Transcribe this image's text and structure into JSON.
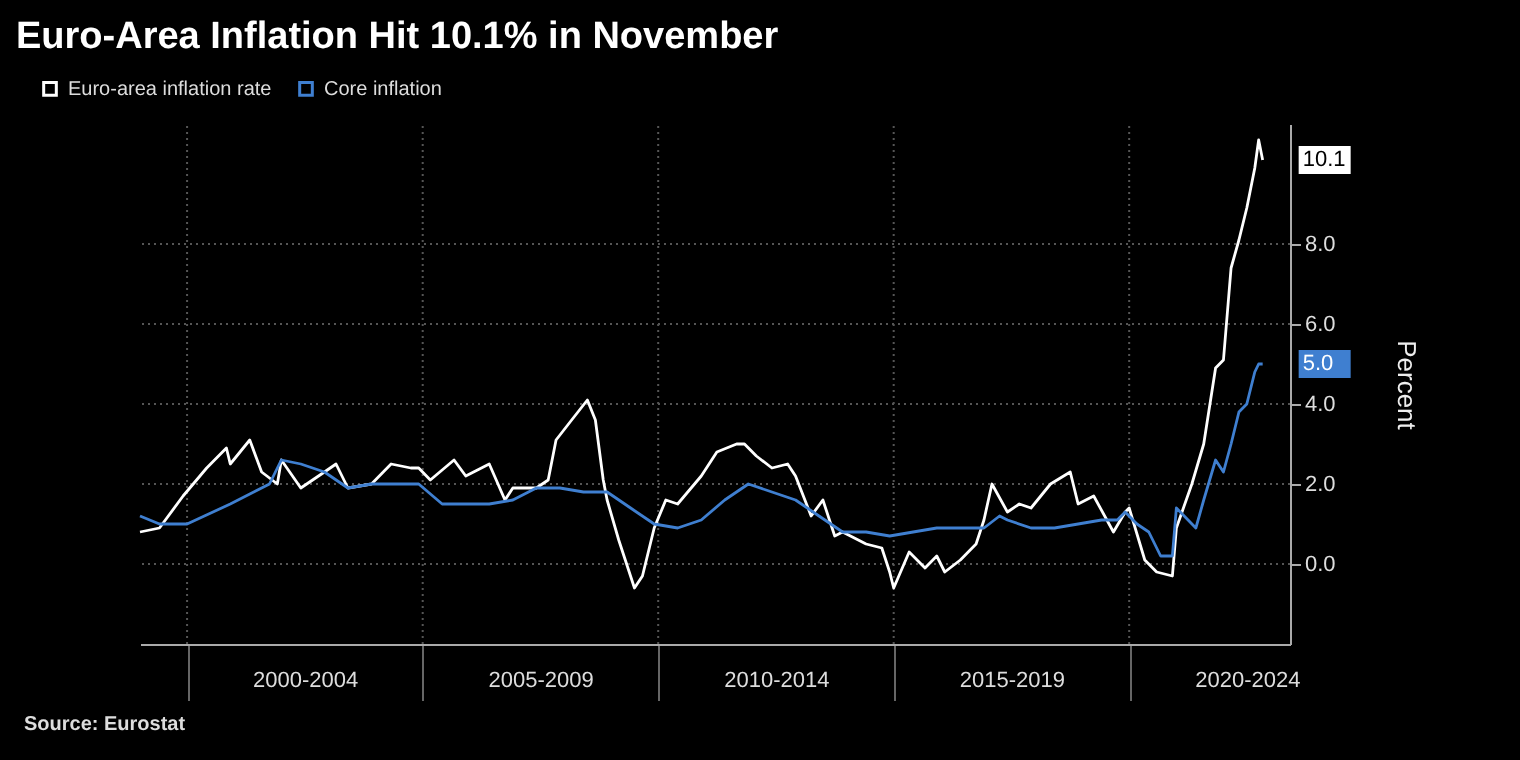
{
  "chart_data": {
    "type": "line",
    "title": "Euro-Area Inflation Hit 10.1% in November",
    "ylabel": "Percent",
    "xlim": [
      "1999-01",
      "2023-06"
    ],
    "xticks": [
      {
        "value": "2000-01",
        "label": null
      },
      {
        "value": "2002-07",
        "label": "2000-2004"
      },
      {
        "value": "2005-01",
        "label": null
      },
      {
        "value": "2007-07",
        "label": "2005-2009"
      },
      {
        "value": "2010-01",
        "label": null
      },
      {
        "value": "2012-07",
        "label": "2010-2014"
      },
      {
        "value": "2015-01",
        "label": null
      },
      {
        "value": "2017-07",
        "label": "2015-2019"
      },
      {
        "value": "2020-01",
        "label": null
      },
      {
        "value": "2022-07",
        "label": "2020-2024"
      }
    ],
    "ylim": [
      -2,
      11
    ],
    "yticks": [
      {
        "value": 0,
        "label": "0.0"
      },
      {
        "value": 2,
        "label": "2.0"
      },
      {
        "value": 4,
        "label": "4.0"
      },
      {
        "value": 6,
        "label": "6.0"
      },
      {
        "value": 8,
        "label": "8.0"
      }
    ],
    "grid": true,
    "legend": "top left",
    "line_style": "solid",
    "annotations": [
      {
        "text": "10.1",
        "x": "2022-11",
        "y": 10.1
      },
      {
        "text": "5.0",
        "x": "2022-11",
        "y": 5.0
      },
      "Source: Eurostat"
    ],
    "series": [
      {
        "name": "Euro-area inflation rate",
        "color": "#ffffff",
        "x": [
          "1999-01",
          "1999-06",
          "1999-12",
          "2000-06",
          "2000-11",
          "2000-12",
          "2001-05",
          "2001-08",
          "2001-12",
          "2002-01",
          "2002-06",
          "2002-12",
          "2003-03",
          "2003-06",
          "2003-12",
          "2004-05",
          "2004-10",
          "2004-12",
          "2005-03",
          "2005-09",
          "2005-12",
          "2006-06",
          "2006-10",
          "2006-12",
          "2007-06",
          "2007-09",
          "2007-11",
          "2008-03",
          "2008-07",
          "2008-09",
          "2008-11",
          "2008-12",
          "2009-03",
          "2009-07",
          "2009-09",
          "2009-12",
          "2010-03",
          "2010-06",
          "2010-12",
          "2011-04",
          "2011-09",
          "2011-11",
          "2012-02",
          "2012-06",
          "2012-10",
          "2012-12",
          "2013-04",
          "2013-07",
          "2013-10",
          "2013-12",
          "2014-06",
          "2014-10",
          "2014-12",
          "2015-01",
          "2015-05",
          "2015-09",
          "2015-12",
          "2016-02",
          "2016-06",
          "2016-10",
          "2016-12",
          "2017-02",
          "2017-06",
          "2017-09",
          "2017-12",
          "2018-05",
          "2018-10",
          "2018-12",
          "2019-04",
          "2019-09",
          "2019-12",
          "2020-01",
          "2020-05",
          "2020-08",
          "2020-12",
          "2021-01",
          "2021-05",
          "2021-08",
          "2021-11",
          "2022-01",
          "2022-03",
          "2022-05",
          "2022-07",
          "2022-09",
          "2022-10",
          "2022-11"
        ],
        "values": [
          0.8,
          0.9,
          1.7,
          2.4,
          2.9,
          2.5,
          3.1,
          2.3,
          2.0,
          2.6,
          1.9,
          2.3,
          2.5,
          1.9,
          2.0,
          2.5,
          2.4,
          2.4,
          2.1,
          2.6,
          2.2,
          2.5,
          1.6,
          1.9,
          1.9,
          2.1,
          3.1,
          3.6,
          4.1,
          3.6,
          2.1,
          1.6,
          0.6,
          -0.6,
          -0.3,
          0.9,
          1.6,
          1.5,
          2.2,
          2.8,
          3.0,
          3.0,
          2.7,
          2.4,
          2.5,
          2.2,
          1.2,
          1.6,
          0.7,
          0.8,
          0.5,
          0.4,
          -0.2,
          -0.6,
          0.3,
          -0.1,
          0.2,
          -0.2,
          0.1,
          0.5,
          1.1,
          2.0,
          1.3,
          1.5,
          1.4,
          2.0,
          2.3,
          1.5,
          1.7,
          0.8,
          1.3,
          1.4,
          0.1,
          -0.2,
          -0.3,
          0.9,
          2.0,
          3.0,
          4.9,
          5.1,
          7.4,
          8.1,
          8.9,
          9.9,
          10.6,
          10.1
        ]
      },
      {
        "name": "Core inflation",
        "color": "#3f7fd0",
        "x": [
          "1999-01",
          "1999-06",
          "2000-01",
          "2000-12",
          "2001-06",
          "2001-10",
          "2002-01",
          "2002-06",
          "2002-12",
          "2003-06",
          "2003-12",
          "2004-06",
          "2004-12",
          "2005-06",
          "2005-12",
          "2006-06",
          "2006-12",
          "2007-06",
          "2007-12",
          "2008-06",
          "2008-12",
          "2009-06",
          "2009-12",
          "2010-06",
          "2010-12",
          "2011-06",
          "2011-12",
          "2012-06",
          "2012-12",
          "2013-06",
          "2013-12",
          "2014-06",
          "2014-12",
          "2015-06",
          "2015-12",
          "2016-06",
          "2016-12",
          "2017-04",
          "2017-06",
          "2017-12",
          "2018-06",
          "2018-12",
          "2019-06",
          "2019-10",
          "2019-12",
          "2020-03",
          "2020-06",
          "2020-09",
          "2020-12",
          "2021-01",
          "2021-06",
          "2021-08",
          "2021-11",
          "2022-01",
          "2022-03",
          "2022-05",
          "2022-07",
          "2022-09",
          "2022-10",
          "2022-11"
        ],
        "values": [
          1.2,
          1.0,
          1.0,
          1.5,
          1.8,
          2.0,
          2.6,
          2.5,
          2.3,
          1.9,
          2.0,
          2.0,
          2.0,
          1.5,
          1.5,
          1.5,
          1.6,
          1.9,
          1.9,
          1.8,
          1.8,
          1.4,
          1.0,
          0.9,
          1.1,
          1.6,
          2.0,
          1.8,
          1.6,
          1.2,
          0.8,
          0.8,
          0.7,
          0.8,
          0.9,
          0.9,
          0.9,
          1.2,
          1.1,
          0.9,
          0.9,
          1.0,
          1.1,
          1.1,
          1.3,
          1.0,
          0.8,
          0.2,
          0.2,
          1.4,
          0.9,
          1.6,
          2.6,
          2.3,
          3.0,
          3.8,
          4.0,
          4.8,
          5.0,
          5.0
        ]
      }
    ]
  }
}
